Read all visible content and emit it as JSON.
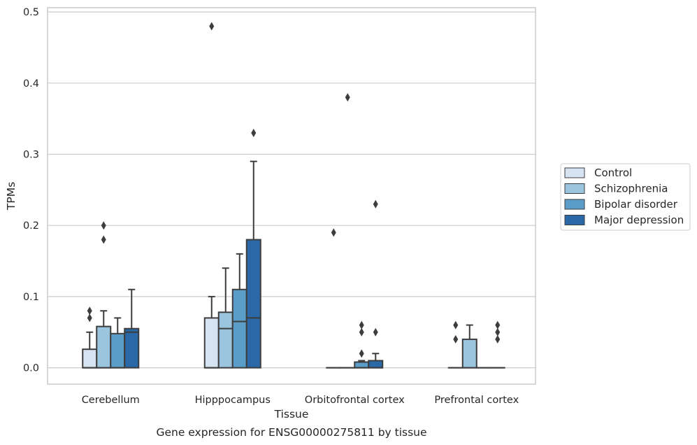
{
  "chart_data": {
    "type": "box",
    "title": "",
    "caption": "Gene expression for ENSG00000275811 by tissue",
    "xlabel": "Tissue",
    "ylabel": "TPMs",
    "ylim": [
      -0.023,
      0.506
    ],
    "yticks": [
      "0.0",
      "0.1",
      "0.2",
      "0.3",
      "0.4",
      "0.5"
    ],
    "ytick_values": [
      0,
      0.1,
      0.2,
      0.3,
      0.4,
      0.5
    ],
    "grid": "horizontal",
    "legend_position": "right",
    "categories": [
      "Cerebellum",
      "Hipppocampus",
      "Orbitofrontal cortex",
      "Prefrontal cortex"
    ],
    "series": [
      {
        "name": "Control",
        "color": "#d5e3f2",
        "boxes": [
          {
            "q1": 0.0,
            "median": 0.0,
            "q3": 0.026,
            "whisker_low": 0.0,
            "whisker_high": 0.05,
            "outliers": [
              0.07,
              0.08
            ]
          },
          {
            "q1": 0.0,
            "median": 0.0,
            "q3": 0.07,
            "whisker_low": 0.0,
            "whisker_high": 0.1,
            "outliers": [
              0.48
            ]
          },
          {
            "q1": 0.0,
            "median": 0.0,
            "q3": 0.0,
            "whisker_low": 0.0,
            "whisker_high": 0.0,
            "outliers": [
              0.19
            ]
          },
          {
            "q1": 0.0,
            "median": 0.0,
            "q3": 0.0,
            "whisker_low": 0.0,
            "whisker_high": 0.0,
            "outliers": [
              0.04,
              0.06
            ]
          }
        ]
      },
      {
        "name": "Schizophrenia",
        "color": "#9bc4de",
        "boxes": [
          {
            "q1": 0.0,
            "median": 0.0,
            "q3": 0.058,
            "whisker_low": 0.0,
            "whisker_high": 0.08,
            "outliers": [
              0.18,
              0.2
            ]
          },
          {
            "q1": 0.0,
            "median": 0.055,
            "q3": 0.078,
            "whisker_low": 0.0,
            "whisker_high": 0.14,
            "outliers": []
          },
          {
            "q1": 0.0,
            "median": 0.0,
            "q3": 0.0,
            "whisker_low": 0.0,
            "whisker_high": 0.0,
            "outliers": [
              0.38
            ]
          },
          {
            "q1": 0.0,
            "median": 0.0,
            "q3": 0.04,
            "whisker_low": 0.0,
            "whisker_high": 0.06,
            "outliers": []
          }
        ]
      },
      {
        "name": "Bipolar disorder",
        "color": "#5a9dc8",
        "boxes": [
          {
            "q1": 0.0,
            "median": 0.0,
            "q3": 0.048,
            "whisker_low": 0.0,
            "whisker_high": 0.07,
            "outliers": []
          },
          {
            "q1": 0.0,
            "median": 0.065,
            "q3": 0.11,
            "whisker_low": 0.0,
            "whisker_high": 0.16,
            "outliers": []
          },
          {
            "q1": 0.0,
            "median": 0.0,
            "q3": 0.008,
            "whisker_low": 0.0,
            "whisker_high": 0.01,
            "outliers": [
              0.02,
              0.05,
              0.06
            ]
          },
          {
            "q1": 0.0,
            "median": 0.0,
            "q3": 0.0,
            "whisker_low": 0.0,
            "whisker_high": 0.0,
            "outliers": []
          }
        ]
      },
      {
        "name": "Major depression",
        "color": "#2a68a7",
        "boxes": [
          {
            "q1": 0.0,
            "median": 0.05,
            "q3": 0.055,
            "whisker_low": 0.0,
            "whisker_high": 0.11,
            "outliers": []
          },
          {
            "q1": 0.0,
            "median": 0.07,
            "q3": 0.18,
            "whisker_low": 0.0,
            "whisker_high": 0.29,
            "outliers": [
              0.33
            ]
          },
          {
            "q1": 0.0,
            "median": 0.0,
            "q3": 0.01,
            "whisker_low": 0.0,
            "whisker_high": 0.02,
            "outliers": [
              0.05,
              0.23
            ]
          },
          {
            "q1": 0.0,
            "median": 0.0,
            "q3": 0.0,
            "whisker_low": 0.0,
            "whisker_high": 0.0,
            "outliers": [
              0.04,
              0.05,
              0.06
            ]
          }
        ]
      }
    ]
  }
}
